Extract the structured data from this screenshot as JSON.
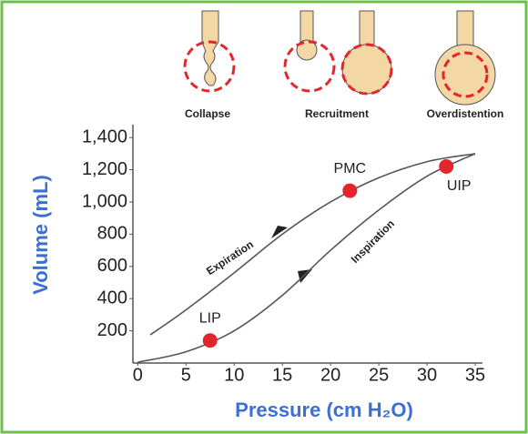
{
  "chart_data": {
    "type": "line",
    "stages": [
      "Collapse",
      "Recruitment",
      "Overdistention"
    ],
    "x_label": "Pressure (cm H₂O)",
    "y_label": "Volume (mL)",
    "xlim": [
      -0.5,
      35
    ],
    "ylim": [
      0,
      1480
    ],
    "xticks": [
      0,
      5,
      10,
      15,
      20,
      25,
      30,
      35
    ],
    "yticks": [
      200,
      400,
      600,
      800,
      {
        "value": 1000,
        "label": "1,000"
      },
      {
        "value": 1200,
        "label": "1,200"
      },
      {
        "value": 1400,
        "label": "1,400"
      }
    ],
    "series": [
      {
        "name": "Expiration",
        "color": "#555555",
        "x": [
          1.3,
          5,
          10,
          15,
          20,
          25,
          30,
          35
        ],
        "values": [
          175,
          330,
          560,
          800,
          1000,
          1150,
          1250,
          1300
        ]
      },
      {
        "name": "Inspiration",
        "color": "#555555",
        "x": [
          0,
          5,
          10,
          15,
          20,
          25,
          30,
          35
        ],
        "values": [
          5,
          70,
          200,
          420,
          700,
          950,
          1160,
          1300
        ]
      }
    ],
    "points": [
      {
        "label": "LIP",
        "x": 7.5,
        "y": 140,
        "color": "#e3262b"
      },
      {
        "label": "PMC",
        "x": 22,
        "y": 1070,
        "color": "#e3262b"
      },
      {
        "label": "UIP",
        "x": 32,
        "y": 1220,
        "color": "#e3262b"
      }
    ]
  }
}
